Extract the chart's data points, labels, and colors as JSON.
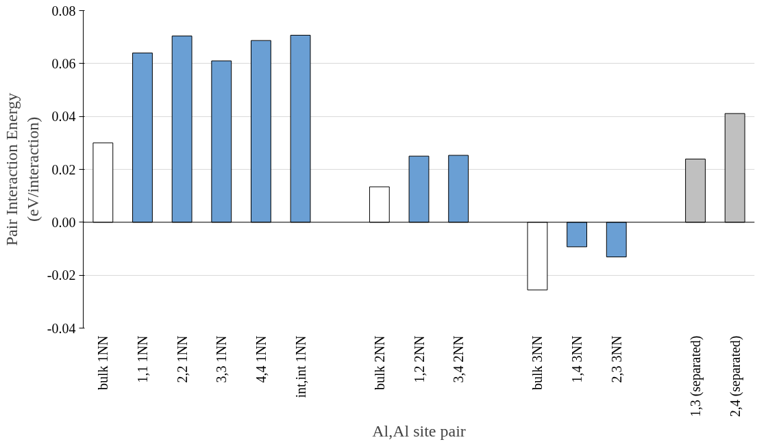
{
  "chart_data": {
    "type": "bar",
    "xlabel": "Al,Al site pair",
    "ylabel": "Pair Interaction Energy\n(eV/interaction)",
    "categories": [
      "bulk 1NN",
      "1,1 1NN",
      "2,2 1NN",
      "3,3 1NN",
      "4,4 1NN",
      "int,int 1NN",
      null,
      "bulk 2NN",
      "1,2 2NN",
      "3,4 2NN",
      null,
      "bulk 3NN",
      "1,4 3NN",
      "2,3 3NN",
      null,
      "1,3 (separated)",
      "2,4 (separated)"
    ],
    "values": [
      0.03,
      0.064,
      0.0704,
      0.061,
      0.0687,
      0.0707,
      null,
      0.0134,
      0.025,
      0.0253,
      null,
      -0.0256,
      -0.0093,
      -0.0131,
      null,
      0.0239,
      0.0411
    ],
    "colors": [
      "#ffffff",
      "#6a9fd4",
      "#6a9fd4",
      "#6a9fd4",
      "#6a9fd4",
      "#6a9fd4",
      null,
      "#ffffff",
      "#6a9fd4",
      "#6a9fd4",
      null,
      "#ffffff",
      "#6a9fd4",
      "#6a9fd4",
      null,
      "#c0c0c0",
      "#c0c0c0"
    ],
    "ylim": [
      -0.04,
      0.08
    ],
    "yticks": [
      -0.04,
      -0.02,
      {
        "value": 0,
        "label": "0.00"
      },
      0.02,
      0.04,
      0.06,
      0.08
    ],
    "grid": "y"
  }
}
